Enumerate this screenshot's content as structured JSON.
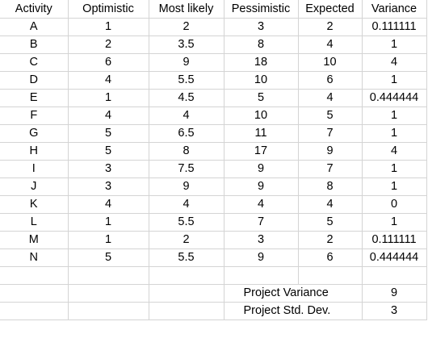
{
  "sheet": {
    "headers": [
      "Activity",
      "Optimistic",
      "Most likely",
      "Pessimistic",
      "Expected",
      "Variance"
    ],
    "rows": [
      [
        "A",
        "1",
        "2",
        "3",
        "2",
        "0.111111"
      ],
      [
        "B",
        "2",
        "3.5",
        "8",
        "4",
        "1"
      ],
      [
        "C",
        "6",
        "9",
        "18",
        "10",
        "4"
      ],
      [
        "D",
        "4",
        "5.5",
        "10",
        "6",
        "1"
      ],
      [
        "E",
        "1",
        "4.5",
        "5",
        "4",
        "0.444444"
      ],
      [
        "F",
        "4",
        "4",
        "10",
        "5",
        "1"
      ],
      [
        "G",
        "5",
        "6.5",
        "11",
        "7",
        "1"
      ],
      [
        "H",
        "5",
        "8",
        "17",
        "9",
        "4"
      ],
      [
        "I",
        "3",
        "7.5",
        "9",
        "7",
        "1"
      ],
      [
        "J",
        "3",
        "9",
        "9",
        "8",
        "1"
      ],
      [
        "K",
        "4",
        "4",
        "4",
        "4",
        "0"
      ],
      [
        "L",
        "1",
        "5.5",
        "7",
        "5",
        "1"
      ],
      [
        "M",
        "1",
        "2",
        "3",
        "2",
        "0.111111"
      ],
      [
        "N",
        "5",
        "5.5",
        "9",
        "6",
        "0.444444"
      ]
    ],
    "summary": {
      "variance_label": "Project Variance",
      "variance_value": "9",
      "stddev_label": "Project Std. Dev.",
      "stddev_value": "3"
    }
  }
}
